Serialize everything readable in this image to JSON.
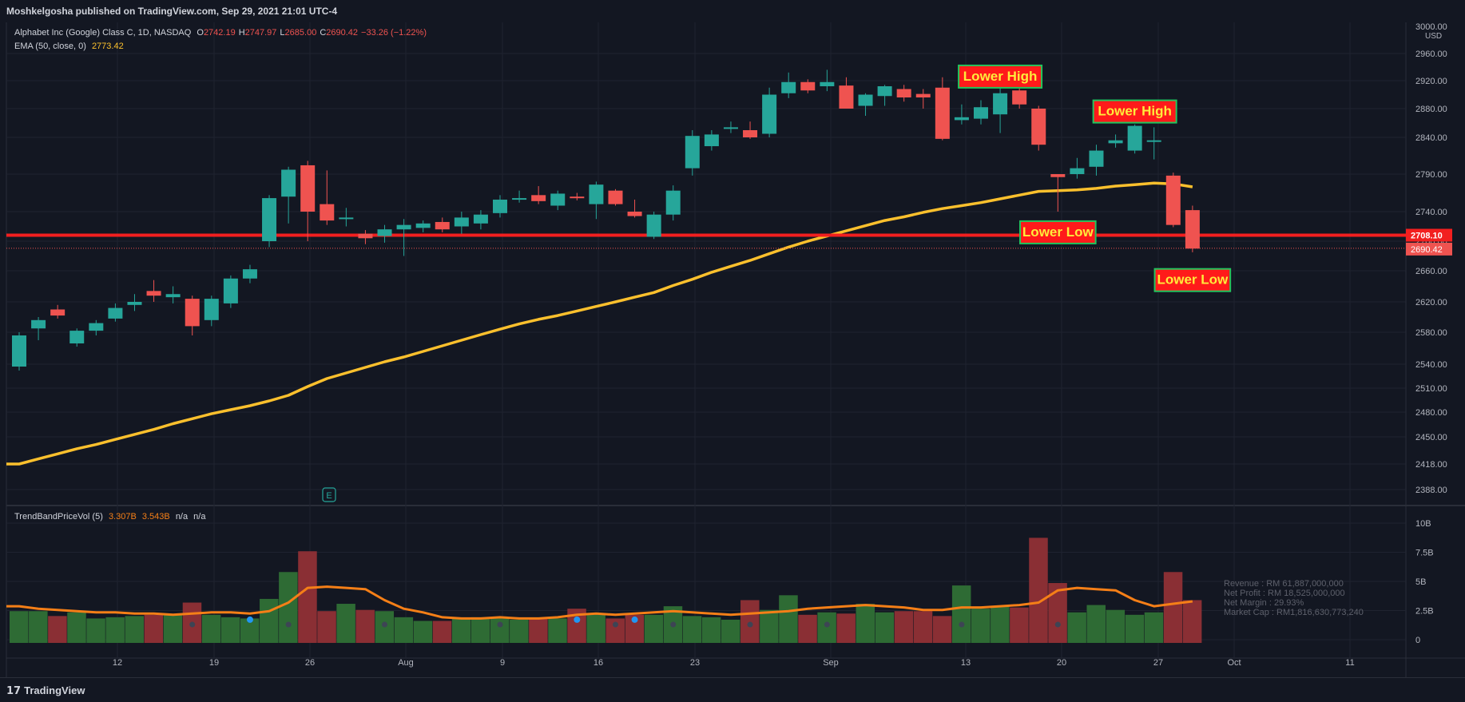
{
  "header": {
    "publisher": "Moshkelgosha published on TradingView.com, Sep 29, 2021 21:01 UTC-4"
  },
  "legend": {
    "symbol": "Alphabet Inc (Google) Class C, 1D, NASDAQ",
    "o_label": "O",
    "o_value": "2742.19",
    "h_label": "H",
    "h_value": "2747.97",
    "l_label": "L",
    "l_value": "2685.00",
    "c_label": "C",
    "c_value": "2690.42",
    "change": "−33.26 (−1.22%)",
    "ema_label": "EMA (50, close, 0)",
    "ema_value": "2773.42"
  },
  "volume_legend": {
    "name": "TrendBandPriceVol (5)",
    "v1": "3.307B",
    "v2": "3.543B",
    "v3": "n/a",
    "v4": "n/a"
  },
  "financials": [
    "Revenue : RM 61,887,000,000",
    "Net Profit : RM 18,525,000,000",
    "Net Margin : 29.93%",
    "Market Cap : RM1,816,630,773,240"
  ],
  "branding": {
    "logo_text": "TradingView"
  },
  "colors": {
    "up": "#26a69a",
    "down": "#ef5350",
    "ema": "#fbc02d",
    "support": "#f21f1f",
    "bg": "#131722",
    "grid": "#1f2330",
    "vol_up": "#2e6b34",
    "vol_down": "#8a2f34",
    "vol_ma": "#f57f17",
    "label_bg": "#ff1a1a",
    "label_text": "#ffeb3b",
    "label_border": "#22c55e"
  },
  "chart_data": [
    {
      "type": "candlestick",
      "title": "Alphabet Inc (Google) Class C, 1D, NASDAQ",
      "x_ticks": [
        "12",
        "19",
        "26",
        "Aug",
        "9",
        "16",
        "23",
        "Sep",
        "13",
        "20",
        "27",
        "Oct",
        "11"
      ],
      "y_ticks": [
        3000,
        2960,
        2920,
        2880,
        2840,
        2790,
        2740,
        2700,
        2660,
        2620,
        2580,
        2540,
        2510,
        2480,
        2450,
        2418,
        2388
      ],
      "y_unit": "USD",
      "ohlc": [
        [
          2537,
          2580,
          2532,
          2576
        ],
        [
          2585,
          2600,
          2570,
          2596
        ],
        [
          2610,
          2616,
          2598,
          2602
        ],
        [
          2566,
          2585,
          2562,
          2582
        ],
        [
          2582,
          2596,
          2576,
          2592
        ],
        [
          2598,
          2618,
          2594,
          2612
        ],
        [
          2616,
          2630,
          2608,
          2620
        ],
        [
          2634,
          2648,
          2620,
          2628
        ],
        [
          2626,
          2640,
          2618,
          2630
        ],
        [
          2624,
          2628,
          2576,
          2588
        ],
        [
          2596,
          2628,
          2588,
          2624
        ],
        [
          2618,
          2654,
          2612,
          2650
        ],
        [
          2650,
          2668,
          2644,
          2662
        ],
        [
          2700,
          2762,
          2692,
          2758
        ],
        [
          2760,
          2800,
          2724,
          2796
        ],
        [
          2802,
          2808,
          2700,
          2740
        ],
        [
          2750,
          2795,
          2722,
          2728
        ],
        [
          2730,
          2745,
          2720,
          2732
        ],
        [
          2710,
          2715,
          2696,
          2704
        ],
        [
          2707,
          2722,
          2698,
          2716
        ],
        [
          2716,
          2730,
          2680,
          2722
        ],
        [
          2718,
          2728,
          2712,
          2724
        ],
        [
          2726,
          2732,
          2712,
          2716
        ],
        [
          2720,
          2740,
          2710,
          2732
        ],
        [
          2724,
          2742,
          2716,
          2736
        ],
        [
          2738,
          2762,
          2732,
          2756
        ],
        [
          2758,
          2768,
          2752,
          2758
        ],
        [
          2762,
          2774,
          2750,
          2754
        ],
        [
          2748,
          2768,
          2742,
          2764
        ],
        [
          2760,
          2765,
          2755,
          2758
        ],
        [
          2750,
          2780,
          2730,
          2776
        ],
        [
          2768,
          2770,
          2748,
          2750
        ],
        [
          2740,
          2756,
          2732,
          2734
        ],
        [
          2706,
          2740,
          2703,
          2736
        ],
        [
          2736,
          2775,
          2728,
          2768
        ],
        [
          2798,
          2850,
          2788,
          2842
        ],
        [
          2828,
          2850,
          2822,
          2844
        ],
        [
          2852,
          2862,
          2846,
          2854
        ],
        [
          2850,
          2862,
          2838,
          2840
        ],
        [
          2845,
          2910,
          2840,
          2900
        ],
        [
          2902,
          2932,
          2895,
          2918
        ],
        [
          2918,
          2922,
          2902,
          2906
        ],
        [
          2912,
          2936,
          2905,
          2918
        ],
        [
          2913,
          2925,
          2880,
          2880
        ],
        [
          2884,
          2902,
          2870,
          2900
        ],
        [
          2898,
          2914,
          2884,
          2912
        ],
        [
          2908,
          2914,
          2890,
          2896
        ],
        [
          2901,
          2908,
          2880,
          2896
        ],
        [
          2910,
          2925,
          2836,
          2838
        ],
        [
          2864,
          2886,
          2858,
          2868
        ],
        [
          2866,
          2892,
          2858,
          2882
        ],
        [
          2872,
          2922,
          2846,
          2902
        ],
        [
          2906,
          2918,
          2880,
          2886
        ],
        [
          2880,
          2884,
          2822,
          2830
        ],
        [
          2790,
          2790,
          2740,
          2786
        ],
        [
          2790,
          2812,
          2784,
          2798
        ],
        [
          2800,
          2830,
          2788,
          2822
        ],
        [
          2832,
          2844,
          2826,
          2836
        ],
        [
          2822,
          2858,
          2818,
          2856
        ],
        [
          2834,
          2854,
          2810,
          2836
        ],
        [
          2788,
          2792,
          2719,
          2722
        ],
        [
          2742,
          2748,
          2685,
          2690
        ]
      ],
      "ema50": [
        2418,
        2424,
        2430,
        2436,
        2441,
        2447,
        2453,
        2459,
        2466,
        2472,
        2478,
        2483,
        2488,
        2494,
        2501,
        2512,
        2522,
        2529,
        2536,
        2543,
        2549,
        2556,
        2563,
        2570,
        2577,
        2584,
        2591,
        2597,
        2602,
        2608,
        2614,
        2620,
        2626,
        2632,
        2641,
        2649,
        2658,
        2666,
        2674,
        2683,
        2692,
        2700,
        2707,
        2714,
        2721,
        2728,
        2733,
        2739,
        2744,
        2748,
        2752,
        2757,
        2762,
        2767,
        2768,
        2769,
        2771,
        2774,
        2776,
        2778,
        2777,
        2773
      ],
      "levels": [
        {
          "name": "support",
          "value": 2708.1,
          "label": "2708.10"
        },
        {
          "name": "last",
          "value": 2690.42,
          "label": "2690.42"
        }
      ],
      "annotations": [
        {
          "text": "Lower High",
          "x_index": 51,
          "price": 2926
        },
        {
          "text": "Lower High",
          "x_index": 58,
          "price": 2876
        },
        {
          "text": "Lower Low",
          "x_index": 54,
          "price": 2712
        },
        {
          "text": "Lower Low",
          "x_index": 61,
          "price": 2648
        }
      ]
    },
    {
      "type": "bar",
      "title": "TrendBandPriceVol (5)",
      "y_ticks": [
        "10B",
        "7.5B",
        "5B",
        "2.5B",
        "0"
      ],
      "values": [
        2.6,
        2.6,
        2.2,
        2.5,
        2.0,
        2.1,
        2.2,
        2.3,
        2.3,
        3.3,
        2.3,
        2.1,
        2.0,
        3.6,
        5.8,
        7.5,
        2.6,
        3.2,
        2.7,
        2.6,
        2.1,
        1.8,
        1.8,
        2.0,
        2.1,
        2.1,
        1.9,
        2.0,
        2.0,
        2.8,
        2.4,
        2.0,
        2.3,
        2.3,
        3.0,
        2.2,
        2.1,
        1.9,
        3.5,
        2.7,
        3.9,
        2.3,
        2.5,
        2.4,
        3.2,
        2.5,
        2.6,
        2.6,
        2.2,
        4.7,
        2.8,
        3.0,
        2.9,
        8.6,
        4.9,
        2.5,
        3.1,
        2.7,
        2.3,
        2.5,
        5.8,
        3.5
      ],
      "ma": [
        3.0,
        2.8,
        2.7,
        2.6,
        2.5,
        2.5,
        2.4,
        2.4,
        2.3,
        2.4,
        2.5,
        2.5,
        2.4,
        2.6,
        3.3,
        4.5,
        4.6,
        4.5,
        4.4,
        3.5,
        2.8,
        2.5,
        2.1,
        2.0,
        2.0,
        2.1,
        2.0,
        2.0,
        2.1,
        2.3,
        2.4,
        2.3,
        2.4,
        2.5,
        2.6,
        2.5,
        2.4,
        2.3,
        2.4,
        2.5,
        2.6,
        2.8,
        2.9,
        3.0,
        3.1,
        3.0,
        2.9,
        2.7,
        2.7,
        2.9,
        2.9,
        3.0,
        3.1,
        3.3,
        4.3,
        4.5,
        4.4,
        4.3,
        3.5,
        3.0,
        3.2,
        3.4
      ]
    }
  ]
}
